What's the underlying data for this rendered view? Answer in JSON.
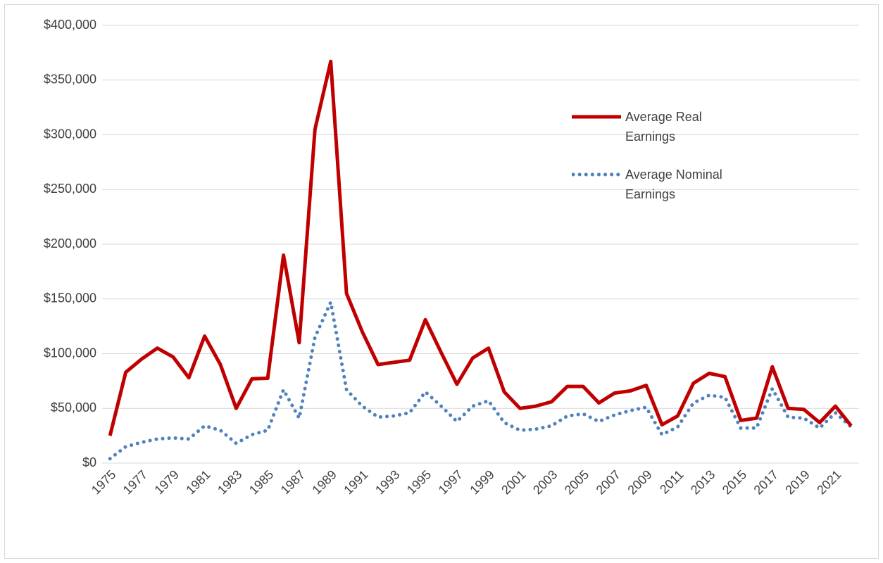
{
  "chart_data": {
    "type": "line",
    "categories": [
      "1975",
      null,
      "1977",
      null,
      "1979",
      null,
      "1981",
      null,
      "1983",
      null,
      "1985",
      null,
      "1987",
      null,
      "1989",
      null,
      "1991",
      null,
      "1993",
      null,
      "1995",
      null,
      "1997",
      null,
      "1999",
      null,
      "2001",
      null,
      "2003",
      null,
      "2005",
      null,
      "2007",
      null,
      "2009",
      null,
      "2011",
      null,
      "2013",
      null,
      "2015",
      null,
      "2017",
      null,
      "2019",
      null,
      "2021",
      null
    ],
    "series": [
      {
        "name": "Average Real Earnings",
        "color": "#c00000",
        "line_style": "solid",
        "values": [
          25000,
          83000,
          95000,
          105000,
          97000,
          78000,
          116000,
          90000,
          50000,
          77000,
          77500,
          190000,
          110000,
          305000,
          367000,
          155000,
          120000,
          90000,
          92000,
          94000,
          131000,
          101000,
          72000,
          96000,
          105000,
          65000,
          50000,
          52000,
          56000,
          70000,
          70000,
          55000,
          64000,
          66000,
          71000,
          35000,
          43000,
          73000,
          82000,
          79000,
          39000,
          41000,
          88000,
          50000,
          49000,
          37000,
          52000,
          34000
        ]
      },
      {
        "name": "Average Nominal Earnings",
        "color": "#4f81bd",
        "line_style": "dotted",
        "values": [
          4000,
          15000,
          19000,
          22000,
          23000,
          22000,
          34000,
          30000,
          18000,
          26000,
          30000,
          67000,
          41000,
          115000,
          147000,
          67000,
          52000,
          42000,
          43000,
          46000,
          65000,
          52000,
          38000,
          52000,
          57000,
          37000,
          30000,
          31000,
          34000,
          43000,
          45000,
          38000,
          44000,
          48000,
          51000,
          26000,
          33000,
          55000,
          62000,
          60000,
          32000,
          32000,
          68000,
          42000,
          41000,
          32000,
          46000,
          33000
        ]
      }
    ],
    "ylim": [
      0,
      400000
    ],
    "yticks": [
      {
        "value": 0,
        "label": "$0"
      },
      {
        "value": 50000,
        "label": "$50,000"
      },
      {
        "value": 100000,
        "label": "$100,000"
      },
      {
        "value": 150000,
        "label": "$150,000"
      },
      {
        "value": 200000,
        "label": "$200,000"
      },
      {
        "value": 250000,
        "label": "$250,000"
      },
      {
        "value": 300000,
        "label": "$300,000"
      },
      {
        "value": 350000,
        "label": "$350,000"
      },
      {
        "value": 400000,
        "label": "$400,000"
      }
    ],
    "grid": true
  }
}
